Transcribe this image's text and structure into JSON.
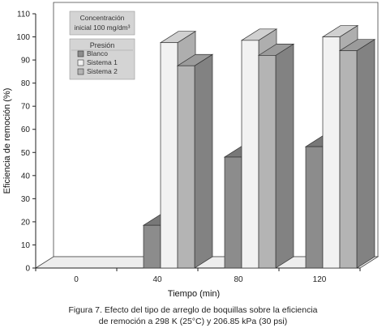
{
  "chart_data": {
    "type": "bar",
    "ylabel": "Eficiencia de remoción (%)",
    "xlabel": "Tiempo (min)",
    "ylim": [
      0,
      110
    ],
    "yticks": [
      0,
      10,
      20,
      30,
      40,
      50,
      60,
      70,
      80,
      90,
      100,
      110
    ],
    "categories": [
      "0",
      "40",
      "80",
      "120"
    ],
    "series": [
      {
        "name": "Blanco",
        "values": [
          0,
          18.5,
          48,
          52.5
        ],
        "color": "#8c8c8c"
      },
      {
        "name": "Sistema 1",
        "values": [
          0,
          97.5,
          98.5,
          100
        ],
        "color": "#f2f2f2"
      },
      {
        "name": "Sistema 2",
        "values": [
          0,
          87.5,
          92,
          94
        ],
        "color": "#b4b4b4"
      }
    ],
    "legend": {
      "position": "top-left",
      "note_line1": "Concentración",
      "note_line2": "inicial 100 mg/dm³",
      "title": "Presión"
    },
    "grid": false
  },
  "caption": {
    "line1": "Figura 7. Efecto del tipo de arreglo de boquillas sobre la eficiencia",
    "line2": "de remoción a 298 K (25°C) y 206.85 kPa (30 psi)"
  }
}
